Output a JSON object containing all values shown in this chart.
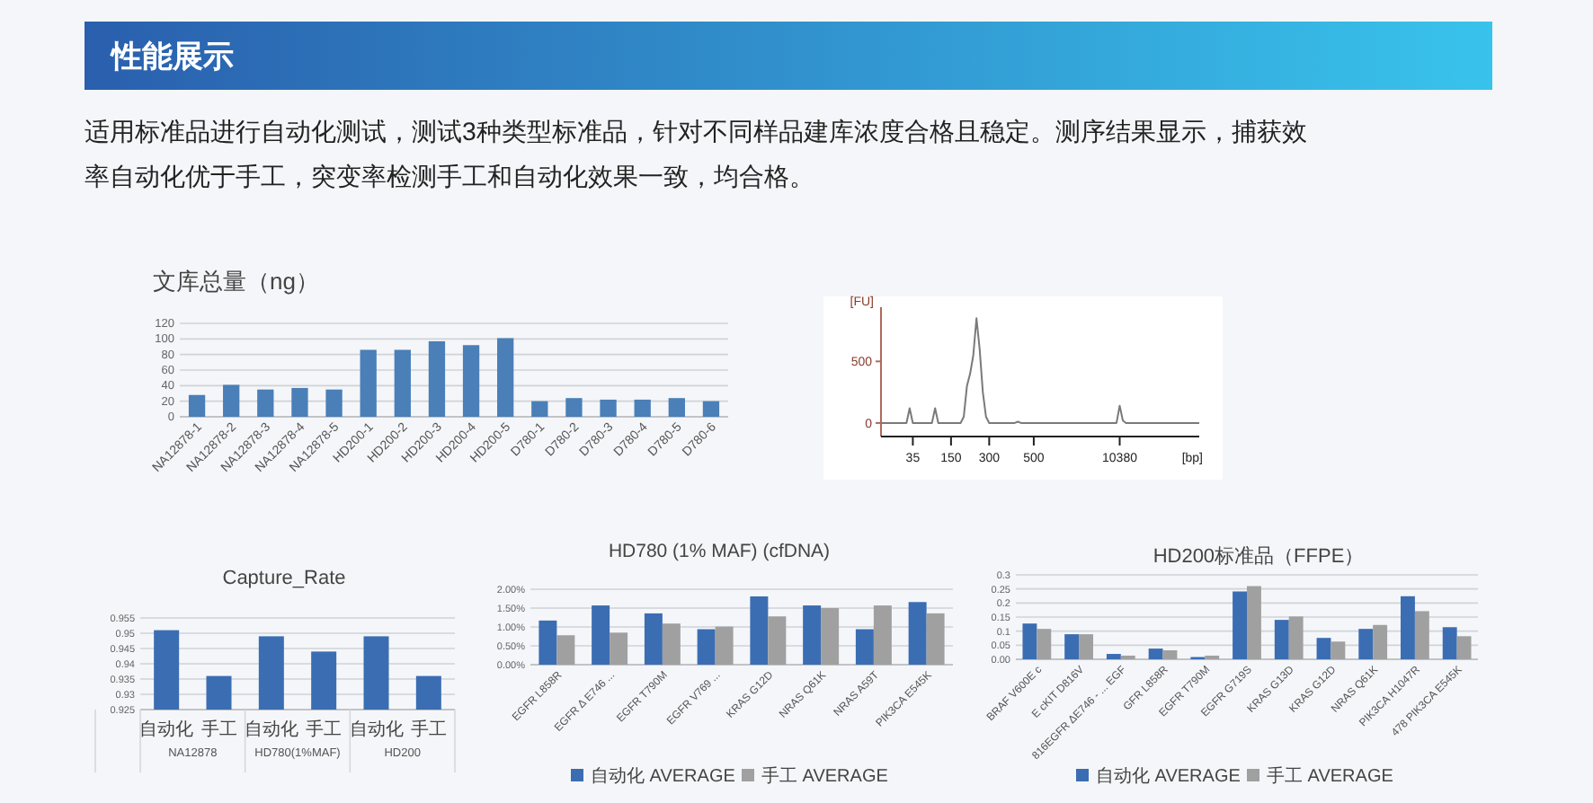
{
  "chart_data": [
    {
      "type": "other",
      "title": "性能展示",
      "subtitle": "适用标准品进行自动化测试，测试3种类型标准品，针对不同样品建库浓度合格且稳定。测序结果显示，捕获效率自动化优于手工，突变率检测手工和自动化效果一致，均合格。"
    },
    {
      "type": "bar",
      "title": "文库总量（ng）",
      "categories": [
        "NA12878-1",
        "NA12878-2",
        "NA12878-3",
        "NA12878-4",
        "NA12878-5",
        "HD200-1",
        "HD200-2",
        "HD200-3",
        "HD200-4",
        "HD200-5",
        "D780-1",
        "D780-2",
        "D780-3",
        "D780-4",
        "D780-5",
        "D780-6"
      ],
      "values": [
        28,
        41,
        35,
        37,
        35,
        86,
        86,
        97,
        92,
        101,
        20,
        24,
        22,
        22,
        24,
        20
      ],
      "color": "#4a7fb8",
      "ylim": [
        0,
        120
      ],
      "yticks": [
        0,
        20,
        40,
        60,
        80,
        100,
        120
      ],
      "grid": "y"
    },
    {
      "type": "line",
      "xlabel": "[bp]",
      "ylabel": "[FU]",
      "ylim": [
        -110,
        940
      ],
      "yticks": [
        0,
        500
      ],
      "categories": [
        null,
        null,
        null,
        null,
        null,
        null,
        null,
        null,
        null,
        null,
        "35",
        null,
        null,
        null,
        null,
        null,
        null,
        null,
        null,
        null,
        null,
        null,
        "150",
        null,
        null,
        null,
        null,
        null,
        null,
        null,
        null,
        null,
        null,
        null,
        "300",
        null,
        null,
        null,
        null,
        null,
        null,
        null,
        null,
        null,
        null,
        null,
        null,
        null,
        "500",
        null,
        null,
        null,
        null,
        null,
        null,
        null,
        null,
        null,
        null,
        null,
        null,
        null,
        null,
        null,
        null,
        null,
        null,
        null,
        null,
        null,
        null,
        null,
        null,
        null,
        null,
        "10380",
        null,
        null,
        null,
        null,
        null,
        null,
        null,
        null,
        null,
        null,
        null,
        null,
        null,
        null,
        null,
        null,
        null,
        null,
        null,
        null,
        null,
        null,
        null,
        null,
        null
      ],
      "marker": "none",
      "line_style": "solid",
      "series": [
        {
          "color": "#7a7a7a",
          "values": [
            0,
            0,
            0,
            0,
            0,
            0,
            0,
            0,
            0,
            120,
            0,
            0,
            0,
            0,
            0,
            0,
            0,
            120,
            0,
            0,
            0,
            0,
            0,
            0,
            0,
            0,
            50,
            300,
            400,
            550,
            850,
            600,
            250,
            50,
            0,
            0,
            0,
            0,
            0,
            0,
            0,
            0,
            0,
            10,
            0,
            0,
            0,
            0,
            0,
            0,
            0,
            0,
            0,
            0,
            0,
            0,
            0,
            0,
            0,
            0,
            0,
            0,
            0,
            0,
            0,
            0,
            0,
            0,
            0,
            0,
            0,
            0,
            0,
            0,
            0,
            140,
            20,
            0,
            0,
            0,
            0,
            0,
            0,
            0,
            0,
            0,
            0,
            0,
            0,
            0,
            0,
            0,
            0,
            0,
            0,
            0,
            0,
            0,
            0,
            0,
            0
          ]
        }
      ]
    },
    {
      "type": "bar",
      "title": "Capture_Rate",
      "categories": [
        "自动化",
        "手工",
        "自动化",
        "手工",
        "自动化",
        "手工"
      ],
      "values": [
        0.951,
        0.936,
        0.949,
        0.944,
        0.949,
        0.936
      ],
      "color": "#3b6db3",
      "ylim": [
        0.925,
        0.955
      ],
      "yticks": [
        0.925,
        0.93,
        0.935,
        0.94,
        0.945,
        0.95,
        0.955
      ],
      "grid": "y",
      "annotations": [
        "NA12878",
        "HD780(1%MAF)",
        "HD200"
      ]
    },
    {
      "type": "bar",
      "title": "HD780 (1% MAF) (cfDNA)",
      "categories": [
        "EGFR L858R",
        "EGFR Δ E746 ...",
        "EGFR T790M",
        "EGFR V769 ...",
        "KRAS G12D",
        "NRAS Q61K",
        "NRAS A59T",
        "PIK3CA E545K"
      ],
      "series": [
        {
          "name": "自动化 AVERAGE",
          "color": "#3b6db3",
          "values": [
            1.17,
            1.57,
            1.36,
            0.94,
            1.81,
            1.57,
            0.94,
            1.66
          ]
        },
        {
          "name": "手工 AVERAGE",
          "color": "#a0a0a0",
          "values": [
            0.78,
            0.85,
            1.09,
            1.01,
            1.28,
            1.5,
            1.57,
            1.36
          ]
        }
      ],
      "ylim": [
        0,
        2
      ],
      "yticks": [
        {
          "value": 0,
          "label": "0.00%"
        },
        {
          "value": 0.5,
          "label": "0.50%"
        },
        {
          "value": 1,
          "label": "1.00%"
        },
        {
          "value": 1.5,
          "label": "1.50%"
        },
        {
          "value": 2,
          "label": "2.00%"
        }
      ],
      "grid": "y",
      "legend": "bottom"
    },
    {
      "type": "bar",
      "title": "HD200标准品（FFPE）",
      "categories": [
        "BRAF V600E c",
        "E cKIT D816V",
        "816EGFR ΔE746 - ... EGF",
        "GFR L858R",
        "EGFR T790M",
        "EGFR G719S",
        "KRAS G13D",
        "KRAS G12D",
        "NRAS Q61K",
        "PIK3CA H1047R",
        "478 PIK3CA E545K"
      ],
      "series": [
        {
          "name": "自动化 AVERAGE",
          "color": "#3b6db3",
          "values": [
            0.127,
            0.089,
            0.019,
            0.038,
            0.008,
            0.241,
            0.14,
            0.076,
            0.108,
            0.224,
            0.114
          ]
        },
        {
          "name": "手工 AVERAGE",
          "color": "#a0a0a0",
          "values": [
            0.108,
            0.089,
            0.013,
            0.032,
            0.013,
            0.26,
            0.152,
            0.063,
            0.122,
            0.171,
            0.082
          ]
        }
      ],
      "ylim": [
        0,
        0.3
      ],
      "yticks": [
        {
          "value": 0,
          "label": "0.00"
        },
        0.05,
        0.1,
        0.15,
        0.2,
        0.25,
        0.3
      ],
      "grid": "y",
      "legend": "bottom"
    }
  ]
}
